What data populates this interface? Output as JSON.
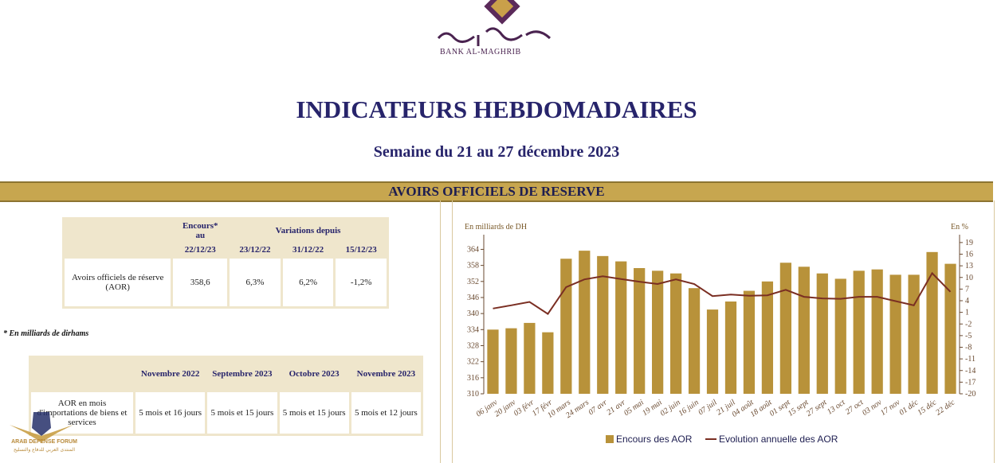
{
  "header": {
    "logo_arabic": "بنك المغرب",
    "logo_latin": "BANK AL-MAGHRIB",
    "title": "INDICATEURS HEBDOMADAIRES",
    "subtitle": "Semaine du 21 au 27 décembre 2023"
  },
  "section": {
    "title": "AVOIRS OFFICIELS DE RESERVE"
  },
  "table1": {
    "col_encours_1": "Encours*",
    "col_encours_2": "au",
    "col_encours_date": "22/12/23",
    "col_variations": "Variations depuis",
    "dates": [
      "23/12/22",
      "31/12/22",
      "15/12/23"
    ],
    "row_label": "Avoirs officiels de réserve (AOR)",
    "encours": "358,6",
    "variations": [
      "6,3%",
      "6,2%",
      "-1,2%"
    ]
  },
  "note": "* En milliards de dirhams",
  "table2": {
    "headers": [
      "Novembre 2022",
      "Septembre 2023",
      "Octobre 2023",
      "Novembre 2023"
    ],
    "row_label": "AOR en mois d'importations de biens et services",
    "values": [
      "5 mois et 16 jours",
      "5 mois et 15 jours",
      "5 mois et 15 jours",
      "5 mois et 12 jours"
    ]
  },
  "watermark": {
    "line1": "ARAB DEFENSE FORUM",
    "line2": "المنتدى العربي للدفاع والتسليح"
  },
  "colors": {
    "bar": "#b8923a",
    "line": "#7a2e22",
    "band": "#c7a64f"
  },
  "chart_data": {
    "type": "bar",
    "left_axis_title": "En milliards de DH",
    "right_axis_title": "En %",
    "categories": [
      "06 janv",
      "20 janv",
      "03 févr",
      "17 févr",
      "10 mars",
      "24 mars",
      "07 avr",
      "21 avr",
      "05 mai",
      "19 mai",
      "02 juin",
      "16 juin",
      "07 juil",
      "21 juil",
      "04 août",
      "18 août",
      "01 sept",
      "15 sept",
      "27 sept",
      "13 oct",
      "27 oct",
      "03 nov",
      "17 nov",
      "01 déc",
      "15 déc",
      "22 déc"
    ],
    "left_ticks": [
      310,
      316,
      322,
      328,
      334,
      340,
      346,
      352,
      358,
      364
    ],
    "right_ticks": [
      19,
      16,
      13,
      10,
      7,
      4,
      1,
      -2,
      -5,
      -8,
      -11,
      -14,
      -17,
      -20
    ],
    "ylim_left": [
      310,
      368
    ],
    "ylim_right": [
      -20,
      20
    ],
    "series": [
      {
        "name": "Encours des AOR",
        "kind": "bar",
        "axis": "left",
        "values": [
          334,
          334.5,
          336.5,
          333,
          360.5,
          363.5,
          361.5,
          359.5,
          357,
          356,
          355,
          349.5,
          341.5,
          344.5,
          348.5,
          352,
          359,
          357.5,
          355,
          353,
          356,
          356.5,
          354.5,
          354.5,
          363,
          358.6
        ]
      },
      {
        "name": "Evolution annuelle des AOR",
        "kind": "line",
        "axis": "right",
        "values": [
          2,
          2.8,
          3.7,
          0.6,
          7.5,
          9.5,
          10.3,
          9.6,
          8.9,
          8.3,
          9.5,
          8.3,
          5.2,
          5.6,
          5.3,
          5.4,
          6.8,
          5.0,
          4.6,
          4.5,
          5.0,
          5.0,
          3.9,
          2.8,
          11.1,
          6.3
        ]
      }
    ]
  }
}
